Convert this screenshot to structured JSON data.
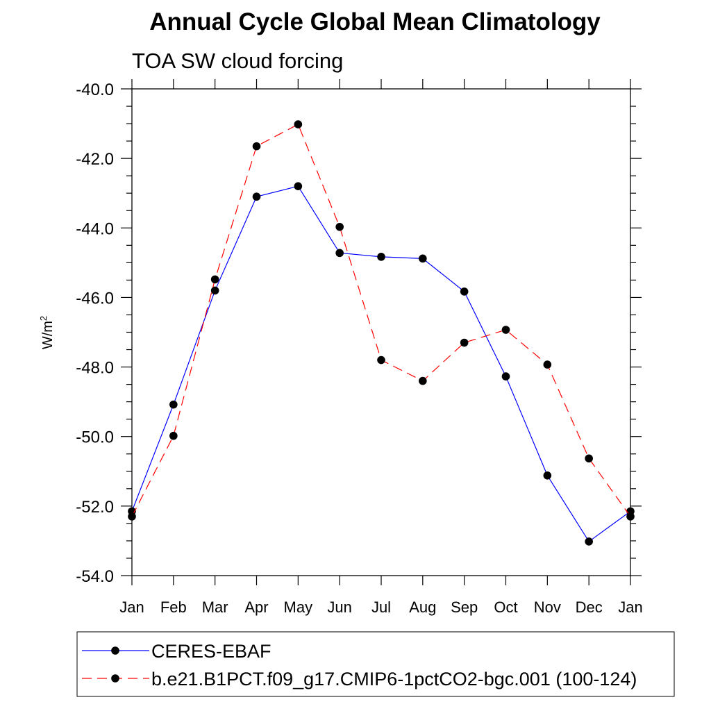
{
  "header": {
    "title": "Annual Cycle Global Mean Climatology",
    "subtitle": "TOA SW cloud forcing"
  },
  "chart_data": {
    "type": "line",
    "title": "Annual Cycle Global Mean Climatology",
    "subtitle": "TOA SW cloud forcing",
    "xlabel": "",
    "ylabel": "W/m",
    "ylabel_sup": "2",
    "categories": [
      "Jan",
      "Feb",
      "Mar",
      "Apr",
      "May",
      "Jun",
      "Jul",
      "Aug",
      "Sep",
      "Oct",
      "Nov",
      "Dec",
      "Jan"
    ],
    "y_ticks": [
      "-40.0",
      "-42.0",
      "-44.0",
      "-46.0",
      "-48.0",
      "-50.0",
      "-52.0",
      "-54.0"
    ],
    "ylim": [
      -54.0,
      -40.0
    ],
    "grid": false,
    "legend_position": "bottom",
    "series": [
      {
        "name": "CERES-EBAF",
        "color": "#0000ff",
        "dash": "solid",
        "values": [
          -52.15,
          -49.08,
          -45.8,
          -43.1,
          -42.8,
          -44.72,
          -44.83,
          -44.88,
          -45.83,
          -48.27,
          -51.12,
          -53.02,
          -52.15
        ]
      },
      {
        "name": "b.e21.B1PCT.f09_g17.CMIP6-1pctCO2-bgc.001 (100-124)",
        "color": "#ff0000",
        "dash": "dashed",
        "values": [
          -52.3,
          -49.98,
          -45.48,
          -41.65,
          -41.02,
          -43.97,
          -47.8,
          -48.4,
          -47.3,
          -46.93,
          -47.93,
          -50.63,
          -52.3
        ]
      }
    ]
  }
}
